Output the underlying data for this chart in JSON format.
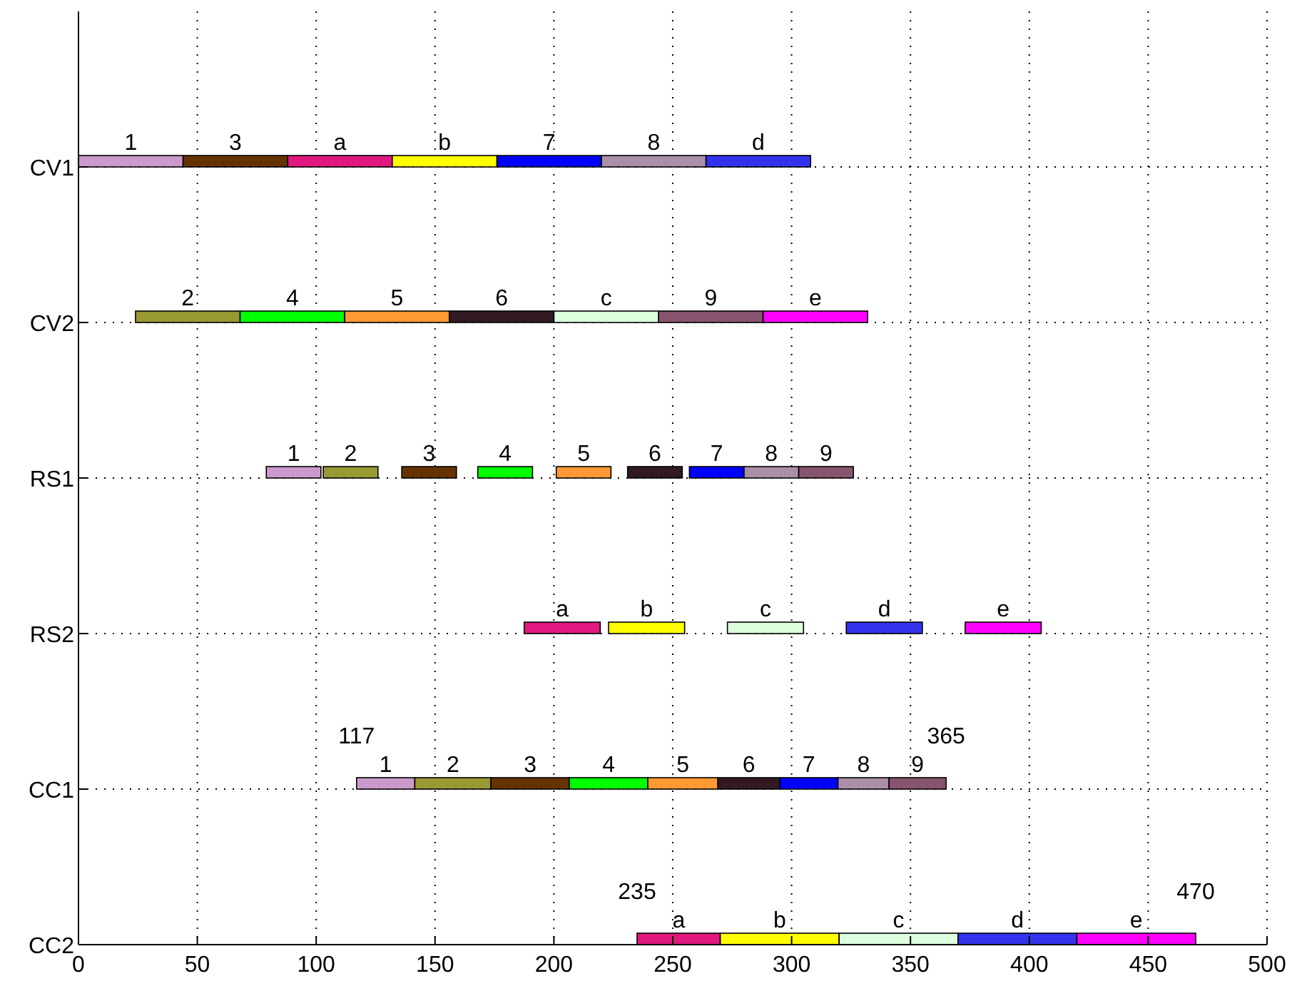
{
  "chart_data": {
    "type": "bar",
    "orientation": "horizontal",
    "categories": [
      "CV1",
      "CV2",
      "RS1",
      "RS2",
      "CC1",
      "CC2"
    ],
    "xlim": [
      0,
      500
    ],
    "xticks": [
      0,
      50,
      100,
      150,
      200,
      250,
      300,
      350,
      400,
      450,
      500
    ],
    "grid": true,
    "series": [
      {
        "name": "1",
        "color": "#cc99cc",
        "values": [
          44,
          null,
          23,
          null,
          24.5,
          null
        ],
        "base": [
          0,
          null,
          79,
          null,
          117,
          null
        ]
      },
      {
        "name": "2",
        "color": "#999933",
        "values": [
          null,
          44,
          23,
          null,
          32,
          null
        ],
        "base": [
          null,
          24,
          103,
          null,
          141.5,
          null
        ]
      },
      {
        "name": "3",
        "color": "#663300",
        "values": [
          44,
          null,
          23,
          null,
          33,
          null
        ],
        "base": [
          44,
          null,
          136,
          null,
          173.5,
          null
        ]
      },
      {
        "name": "4",
        "color": "#00ff00",
        "values": [
          null,
          44,
          23,
          null,
          33,
          null
        ],
        "base": [
          null,
          68,
          168,
          null,
          206.5,
          null
        ]
      },
      {
        "name": "5",
        "color": "#ff9933",
        "values": [
          null,
          44,
          23,
          null,
          29.5,
          null
        ],
        "base": [
          null,
          112,
          201,
          null,
          239.5,
          null
        ]
      },
      {
        "name": "6",
        "color": "#331a22",
        "values": [
          null,
          44,
          23,
          null,
          26,
          null
        ],
        "base": [
          null,
          156,
          231,
          null,
          269,
          null
        ]
      },
      {
        "name": "7",
        "color": "#0000ff",
        "values": [
          44,
          null,
          23,
          null,
          24.5,
          null
        ],
        "base": [
          176,
          null,
          257,
          null,
          295,
          null
        ]
      },
      {
        "name": "8",
        "color": "#aa8fa8",
        "values": [
          44,
          null,
          23,
          null,
          21.5,
          null
        ],
        "base": [
          220,
          null,
          280,
          null,
          319.5,
          null
        ]
      },
      {
        "name": "9",
        "color": "#885570",
        "values": [
          null,
          44,
          23,
          null,
          24,
          null
        ],
        "base": [
          null,
          244,
          303,
          null,
          341,
          null
        ]
      },
      {
        "name": "a",
        "color": "#e0187f",
        "values": [
          44,
          null,
          null,
          32,
          null,
          35
        ],
        "base": [
          88,
          null,
          null,
          187.5,
          null,
          235
        ]
      },
      {
        "name": "b",
        "color": "#ffff00",
        "values": [
          44,
          null,
          null,
          32,
          null,
          50
        ],
        "base": [
          132,
          null,
          null,
          223,
          null,
          270
        ]
      },
      {
        "name": "c",
        "color": "#ddffdd",
        "values": [
          null,
          44,
          null,
          32,
          null,
          50
        ],
        "base": [
          null,
          200,
          null,
          273,
          null,
          320
        ]
      },
      {
        "name": "d",
        "color": "#3333ee",
        "values": [
          44,
          null,
          null,
          32,
          null,
          50
        ],
        "base": [
          264,
          null,
          null,
          323,
          null,
          370
        ]
      },
      {
        "name": "e",
        "color": "#ff00ff",
        "values": [
          null,
          44,
          null,
          32,
          null,
          50
        ],
        "base": [
          null,
          288,
          null,
          373,
          null,
          420
        ]
      }
    ],
    "annotations": [
      {
        "text": "117",
        "x": 117,
        "y": "CC1"
      },
      {
        "text": "365",
        "x": 365,
        "y": "CC1"
      },
      {
        "text": "235",
        "x": 235,
        "y": "CC2"
      },
      {
        "text": "470",
        "x": 470,
        "y": "CC2"
      }
    ]
  }
}
